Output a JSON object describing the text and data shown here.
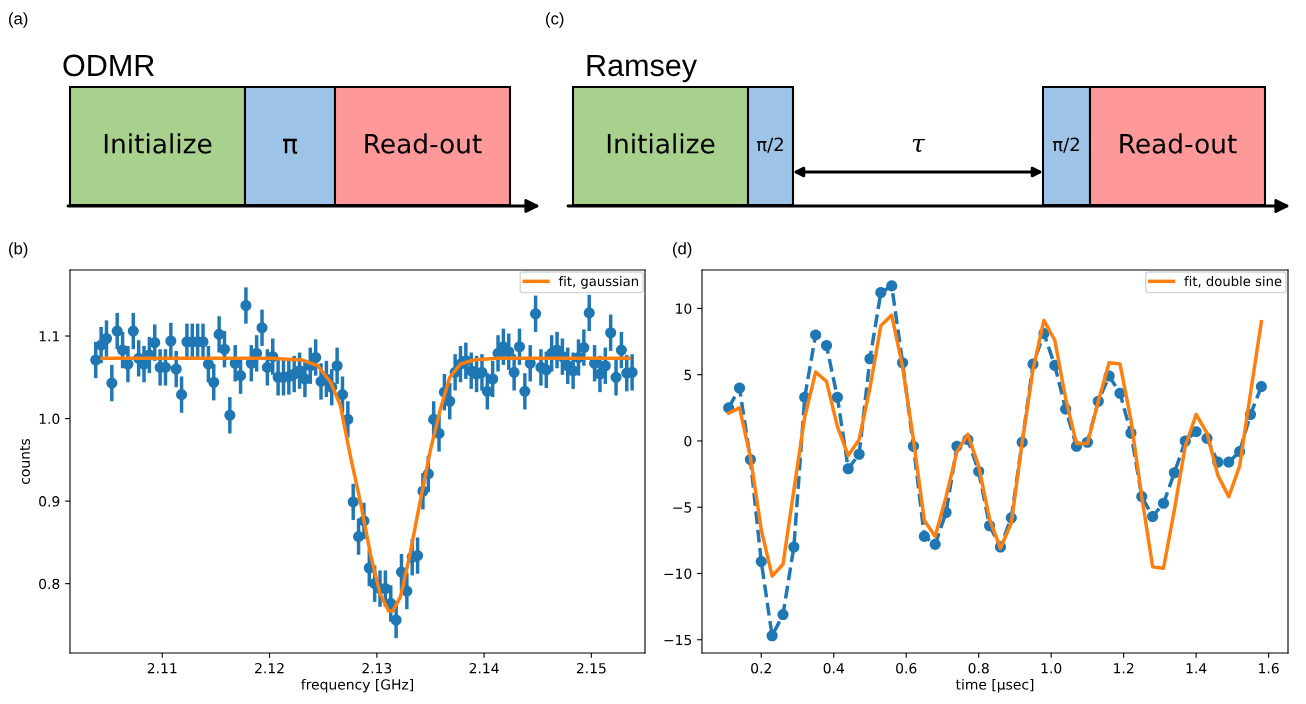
{
  "chart_data": [
    {
      "type": "other",
      "title": "ODMR",
      "annotations": [
        "(a)",
        "Initialize",
        "π",
        "Read-out"
      ]
    },
    {
      "type": "other",
      "title": "Ramsey",
      "annotations": [
        "(c)",
        "Initialize",
        "π/2",
        "τ",
        "π/2",
        "Read-out"
      ]
    },
    {
      "type": "scatter",
      "annotations": [
        "(b)"
      ],
      "xlabel": "frequency [GHz]",
      "ylabel": "counts",
      "xlim": [
        2.1014,
        2.155
      ],
      "ylim": [
        0.716,
        1.18
      ],
      "xticks": [
        2.11,
        2.12,
        2.13,
        2.14,
        2.15
      ],
      "yticks": [
        {
          "value": 0.8,
          "label": "0.8"
        },
        {
          "value": 0.9,
          "label": "0.9"
        },
        {
          "value": 1.0,
          "label": "1.0"
        },
        {
          "value": 1.1,
          "label": "1.1"
        }
      ],
      "legend": "top right",
      "grid": false,
      "series": [
        {
          "type": "scatter",
          "color": "#1f77b4",
          "x": [
            2.1038,
            2.1043,
            2.1048,
            2.1053,
            2.1058,
            2.1063,
            2.1068,
            2.1073,
            2.1078,
            2.1083,
            2.1088,
            2.1093,
            2.1098,
            2.1103,
            2.1108,
            2.1113,
            2.1118,
            2.1123,
            2.1128,
            2.1133,
            2.1138,
            2.1143,
            2.1148,
            2.1153,
            2.1158,
            2.1163,
            2.1168,
            2.1173,
            2.1178,
            2.1183,
            2.1188,
            2.1193,
            2.1198,
            2.1203,
            2.1208,
            2.1213,
            2.1218,
            2.1223,
            2.1228,
            2.1233,
            2.1238,
            2.1243,
            2.1248,
            2.1253,
            2.1258,
            2.1263,
            2.1268,
            2.1273,
            2.1278,
            2.1283,
            2.1288,
            2.1293,
            2.1298,
            2.1303,
            2.1308,
            2.1313,
            2.1318,
            2.1323,
            2.1328,
            2.1333,
            2.1338,
            2.1343,
            2.1348,
            2.1353,
            2.1358,
            2.1363,
            2.1368,
            2.1373,
            2.1378,
            2.1383,
            2.1388,
            2.1393,
            2.1398,
            2.1403,
            2.1408,
            2.1413,
            2.1418,
            2.1423,
            2.1428,
            2.1433,
            2.1438,
            2.1443,
            2.1448,
            2.1453,
            2.1458,
            2.1463,
            2.1468,
            2.1473,
            2.1478,
            2.1483,
            2.1488,
            2.1493,
            2.1498,
            2.1503,
            2.1508,
            2.1513,
            2.1518,
            2.1523,
            2.1528,
            2.1533,
            2.1538
          ],
          "values": [
            1.071,
            1.089,
            1.097,
            1.043,
            1.106,
            1.083,
            1.066,
            1.106,
            1.073,
            1.066,
            1.077,
            1.092,
            1.062,
            1.062,
            1.094,
            1.06,
            1.029,
            1.093,
            1.093,
            1.093,
            1.093,
            1.066,
            1.044,
            1.102,
            1.084,
            1.004,
            1.067,
            1.052,
            1.137,
            1.067,
            1.079,
            1.11,
            1.062,
            1.075,
            1.05,
            1.05,
            1.051,
            1.054,
            1.058,
            1.048,
            1.064,
            1.074,
            1.045,
            1.048,
            1.038,
            1.064,
            1.029,
            0.999,
            0.899,
            0.857,
            0.876,
            0.819,
            0.8,
            0.794,
            0.794,
            0.776,
            0.756,
            0.814,
            0.791,
            0.832,
            0.834,
            0.912,
            0.933,
            0.999,
            0.982,
            1.032,
            1.021,
            1.056,
            1.066,
            1.07,
            1.058,
            1.054,
            1.056,
            1.033,
            1.048,
            1.079,
            1.087,
            1.081,
            1.056,
            1.087,
            1.033,
            1.067,
            1.127,
            1.062,
            1.059,
            1.079,
            1.083,
            1.075,
            1.064,
            1.058,
            1.074,
            1.086,
            1.128,
            1.067,
            1.054,
            1.064,
            1.104,
            1.05,
            1.083,
            1.055,
            1.056
          ],
          "errors": [
            0.022,
            0.022,
            0.022,
            0.022,
            0.022,
            0.022,
            0.022,
            0.022,
            0.022,
            0.022,
            0.022,
            0.022,
            0.022,
            0.022,
            0.022,
            0.022,
            0.022,
            0.022,
            0.022,
            0.022,
            0.022,
            0.022,
            0.022,
            0.022,
            0.022,
            0.022,
            0.022,
            0.022,
            0.022,
            0.022,
            0.022,
            0.022,
            0.022,
            0.022,
            0.022,
            0.022,
            0.022,
            0.022,
            0.022,
            0.022,
            0.022,
            0.022,
            0.022,
            0.022,
            0.022,
            0.022,
            0.022,
            0.022,
            0.022,
            0.022,
            0.022,
            0.022,
            0.022,
            0.022,
            0.022,
            0.022,
            0.022,
            0.022,
            0.022,
            0.022,
            0.022,
            0.022,
            0.022,
            0.022,
            0.022,
            0.022,
            0.022,
            0.022,
            0.022,
            0.022,
            0.022,
            0.022,
            0.022,
            0.022,
            0.022,
            0.022,
            0.022,
            0.022,
            0.022,
            0.022,
            0.022,
            0.022,
            0.022,
            0.022,
            0.022,
            0.022,
            0.022,
            0.022,
            0.022,
            0.022,
            0.022,
            0.022,
            0.022,
            0.022,
            0.022,
            0.022,
            0.022,
            0.022,
            0.022,
            0.022,
            0.022
          ]
        },
        {
          "type": "line",
          "name": "fit, gaussian",
          "color": "#ff7f0e",
          "x": [
            2.1044,
            2.12,
            2.123,
            2.1245,
            2.1257,
            2.1266,
            2.1275,
            2.1285,
            2.1294,
            2.1303,
            2.1311,
            2.1315,
            2.1322,
            2.1331,
            2.134,
            2.135,
            2.1359,
            2.1368,
            2.1378,
            2.139,
            2.1412,
            2.1535
          ],
          "values": [
            1.073,
            1.073,
            1.071,
            1.064,
            1.044,
            1.016,
            0.957,
            0.897,
            0.836,
            0.788,
            0.767,
            0.767,
            0.784,
            0.836,
            0.897,
            0.962,
            1.01,
            1.05,
            1.066,
            1.071,
            1.073,
            1.073
          ]
        }
      ]
    },
    {
      "type": "line",
      "annotations": [
        "(d)"
      ],
      "xlabel": "time [µsec]",
      "xlim": [
        0.0365,
        1.6535
      ],
      "ylim": [
        -16.0,
        12.9
      ],
      "xticks": [
        0.2,
        0.4,
        0.6,
        0.8,
        {
          "value": 1.0,
          "label": "1.0"
        },
        1.2,
        1.4,
        1.6
      ],
      "yticks": [
        {
          "value": -15,
          "label": "−15"
        },
        {
          "value": -10,
          "label": "−10"
        },
        {
          "value": -5,
          "label": "−5"
        },
        0,
        5,
        10
      ],
      "legend": "top right",
      "grid": false,
      "series": [
        {
          "type": "line",
          "marker": "circle",
          "line_style": "dashed",
          "color": "#1f77b4",
          "x": [
            0.11,
            0.14,
            0.17,
            0.2,
            0.23,
            0.26,
            0.29,
            0.32,
            0.35,
            0.38,
            0.41,
            0.44,
            0.47,
            0.5,
            0.53,
            0.56,
            0.59,
            0.62,
            0.65,
            0.68,
            0.71,
            0.74,
            0.77,
            0.8,
            0.83,
            0.86,
            0.89,
            0.92,
            0.95,
            0.98,
            1.01,
            1.04,
            1.07,
            1.1,
            1.13,
            1.16,
            1.19,
            1.22,
            1.25,
            1.28,
            1.31,
            1.34,
            1.37,
            1.4,
            1.43,
            1.46,
            1.49,
            1.52,
            1.55,
            1.58
          ],
          "values": [
            2.5,
            4.0,
            -1.4,
            -9.1,
            -14.7,
            -13.1,
            -8.0,
            3.3,
            8.0,
            7.2,
            3.3,
            -2.1,
            -1.0,
            6.2,
            11.2,
            11.7,
            5.9,
            -0.4,
            -7.2,
            -7.8,
            -5.4,
            -0.4,
            0.1,
            -2.3,
            -6.4,
            -8.0,
            -5.8,
            -0.1,
            5.8,
            8.1,
            5.7,
            2.4,
            -0.4,
            -0.1,
            3.0,
            4.9,
            3.6,
            0.6,
            -4.2,
            -5.7,
            -4.7,
            -2.4,
            0.0,
            0.7,
            0.2,
            -1.6,
            -1.6,
            -0.8,
            2.0,
            4.1
          ]
        },
        {
          "type": "line",
          "name": "fit, double sine",
          "marker": "none",
          "line_style": "solid",
          "color": "#ff7f0e",
          "x": [
            0.11,
            0.14,
            0.17,
            0.2,
            0.23,
            0.26,
            0.29,
            0.32,
            0.35,
            0.38,
            0.41,
            0.44,
            0.47,
            0.5,
            0.53,
            0.56,
            0.59,
            0.62,
            0.65,
            0.68,
            0.71,
            0.74,
            0.77,
            0.8,
            0.83,
            0.86,
            0.89,
            0.92,
            0.95,
            0.98,
            1.01,
            1.04,
            1.07,
            1.1,
            1.13,
            1.16,
            1.19,
            1.22,
            1.25,
            1.28,
            1.31,
            1.34,
            1.37,
            1.4,
            1.43,
            1.46,
            1.49,
            1.52,
            1.55,
            1.58
          ],
          "values": [
            2.1,
            2.5,
            -1.2,
            -6.7,
            -10.2,
            -9.3,
            -3.7,
            1.8,
            5.2,
            4.5,
            1.1,
            -1.1,
            0.1,
            4.0,
            8.7,
            9.5,
            5.6,
            0.1,
            -6.0,
            -7.2,
            -4.2,
            -0.8,
            0.5,
            -1.9,
            -5.9,
            -8.1,
            -6.2,
            -0.1,
            5.4,
            9.1,
            7.6,
            3.2,
            -0.2,
            -0.2,
            3.0,
            5.9,
            5.8,
            1.6,
            -4.2,
            -9.5,
            -9.6,
            -5.2,
            -0.4,
            2.0,
            0.6,
            -2.6,
            -4.2,
            -1.9,
            3.6,
            9.0
          ]
        }
      ]
    }
  ]
}
